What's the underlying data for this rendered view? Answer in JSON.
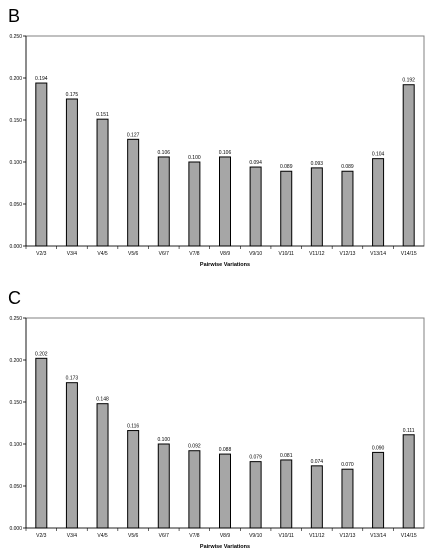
{
  "panels": [
    {
      "letter": "B"
    },
    {
      "letter": "C"
    }
  ],
  "chart_data": [
    {
      "type": "bar",
      "xlabel": "Pairwise Variations",
      "ylabel": "",
      "ylim": [
        0,
        0.25
      ],
      "yticks": [
        "0.000",
        "0.050",
        "0.100",
        "0.150",
        "0.200",
        "0.250"
      ],
      "categories": [
        "V2/3",
        "V3/4",
        "V4/5",
        "V5/6",
        "V6/7",
        "V7/8",
        "V8/9",
        "V9/10",
        "V10/11",
        "V11/12",
        "V12/13",
        "V13/14",
        "V14/15"
      ],
      "values": [
        0.194,
        0.175,
        0.151,
        0.127,
        0.106,
        0.1,
        0.106,
        0.094,
        0.089,
        0.093,
        0.089,
        0.104,
        0.192
      ],
      "labels": [
        "0.194",
        "0.175",
        "0.151",
        "0.127",
        "0.106",
        "0.100",
        "0.106",
        "0.094",
        "0.089",
        "0.093",
        "0.089",
        "0.104",
        "0.192"
      ],
      "bar_color": "#a6a6a6",
      "grid": false
    },
    {
      "type": "bar",
      "xlabel": "Pairwise Variations",
      "ylabel": "",
      "ylim": [
        0,
        0.25
      ],
      "yticks": [
        "0.000",
        "0.050",
        "0.100",
        "0.150",
        "0.200",
        "0.250"
      ],
      "categories": [
        "V2/3",
        "V3/4",
        "V4/5",
        "V5/6",
        "V6/7",
        "V7/8",
        "V8/9",
        "V9/10",
        "V10/11",
        "V11/12",
        "V12/13",
        "V13/14",
        "V14/15"
      ],
      "values": [
        0.202,
        0.173,
        0.148,
        0.116,
        0.1,
        0.092,
        0.088,
        0.079,
        0.081,
        0.074,
        0.07,
        0.09,
        0.111
      ],
      "labels": [
        "0.202",
        "0.173",
        "0.148",
        "0.116",
        "0.100",
        "0.092",
        "0.088",
        "0.079",
        "0.081",
        "0.074",
        "0.070",
        "0.090",
        "0.111"
      ],
      "bar_color": "#a6a6a6",
      "grid": false
    }
  ]
}
